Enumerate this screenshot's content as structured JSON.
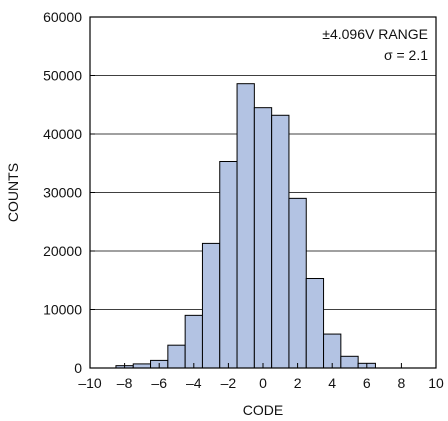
{
  "chart_data": {
    "type": "bar",
    "title": "",
    "xlabel": "CODE",
    "ylabel": "COUNTS",
    "xlim": [
      -10,
      10
    ],
    "ylim": [
      0,
      60000
    ],
    "x_ticks": [
      -10,
      -8,
      -6,
      -4,
      -2,
      0,
      2,
      4,
      6,
      8,
      10
    ],
    "x_tick_labels": [
      "–10",
      "–8",
      "–6",
      "–4",
      "–2",
      "0",
      "2",
      "4",
      "6",
      "8",
      "10"
    ],
    "y_ticks": [
      0,
      10000,
      20000,
      30000,
      40000,
      50000,
      60000
    ],
    "y_tick_labels": [
      "0",
      "10000",
      "20000",
      "30000",
      "40000",
      "50000",
      "60000"
    ],
    "grid": "horizontal",
    "annotation_lines": [
      "±4.096V RANGE",
      "σ = 2.1"
    ],
    "annotation_placement": "top-right",
    "bar_color": "#b3c3e3",
    "bar_edge_color": "#000000",
    "bin_width": 1,
    "x": [
      -8,
      -7,
      -6,
      -5,
      -4,
      -3,
      -2,
      -1,
      0,
      1,
      2,
      3,
      4,
      5,
      6
    ],
    "values": [
      400,
      700,
      1300,
      3900,
      9000,
      21300,
      35300,
      48600,
      44500,
      43200,
      29000,
      15300,
      5800,
      2000,
      800
    ]
  }
}
